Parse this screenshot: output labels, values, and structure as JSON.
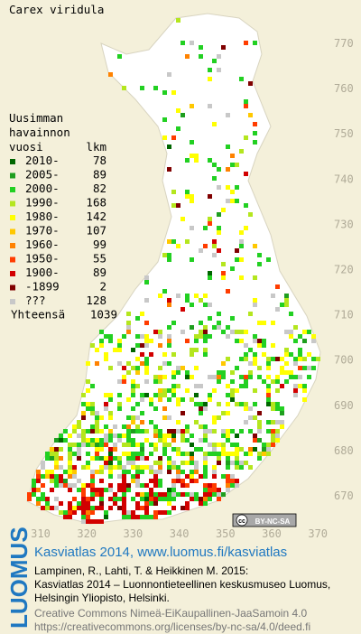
{
  "title": "Carex viridula",
  "legend": {
    "heading": [
      "Uusimman",
      "havainnon",
      "vuosi"
    ],
    "count_heading": "lkm",
    "rows": [
      {
        "label": "2010-",
        "count": 78,
        "color": "#006600"
      },
      {
        "label": "2005-",
        "count": 89,
        "color": "#1e9e1e"
      },
      {
        "label": "2000-",
        "count": 82,
        "color": "#22d022"
      },
      {
        "label": "1990-",
        "count": 168,
        "color": "#b4e61e"
      },
      {
        "label": "1980-",
        "count": 142,
        "color": "#ffff00"
      },
      {
        "label": "1970-",
        "count": 107,
        "color": "#ffc800"
      },
      {
        "label": "1960-",
        "count": 99,
        "color": "#ff8200"
      },
      {
        "label": "1950-",
        "count": 55,
        "color": "#ff3c00"
      },
      {
        "label": "1900-",
        "count": 89,
        "color": "#d20000"
      },
      {
        "label": "-1899",
        "count": 2,
        "color": "#800000"
      },
      {
        "label": "???",
        "count": 128,
        "color": "#c8c8c8"
      }
    ],
    "total_label": "Yhteensä",
    "total": 1039
  },
  "x_ticks": [
    310,
    320,
    330,
    340,
    350,
    360,
    370
  ],
  "y_ticks": [
    770,
    760,
    750,
    740,
    730,
    720,
    710,
    700,
    690,
    680,
    670
  ],
  "license_badge": [
    "cc",
    "BY-NC-SA"
  ],
  "logo": "LUOMUS",
  "credits": {
    "title": "Kasviatlas 2014, www.luomus.fi/kasviatlas",
    "lines": [
      "Lampinen, R., Lahti, T. & Heikkinen M. 2015:",
      "Kasviatlas 2014 – Luonnontieteellinen keskusmuseo Luomus,",
      "Helsingin Yliopisto, Helsinki."
    ],
    "license_lines": [
      "Creative Commons Nimeä-EiKaupallinen-JaaSamoin 4.0",
      "https://creativecommons.org/licenses/by-nc-sa/4.0/deed.fi"
    ]
  }
}
